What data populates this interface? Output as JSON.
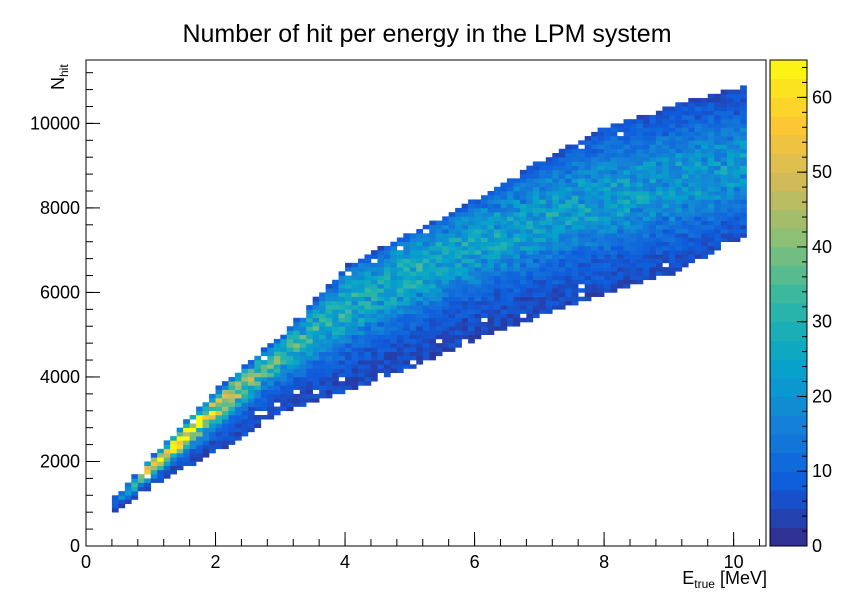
{
  "chart_data": {
    "type": "heatmap",
    "title": "Number of hit per energy in the LPM system",
    "xlabel": {
      "main": "E",
      "sub": "true",
      "suffix": " [MeV]"
    },
    "ylabel": {
      "main": "N",
      "sub": "hit"
    },
    "xlim": [
      0,
      10.5
    ],
    "ylim": [
      0,
      11500
    ],
    "x_ticks": [
      "0",
      "2",
      "4",
      "6",
      "8",
      "10"
    ],
    "y_ticks": [
      "0",
      "2000",
      "4000",
      "6000",
      "8000",
      "10000"
    ],
    "colorbar": {
      "range": [
        0,
        65
      ],
      "ticks": [
        "0",
        "10",
        "20",
        "30",
        "40",
        "50",
        "60"
      ]
    },
    "grid": false,
    "distribution": {
      "x_range": [
        0.4,
        10.1
      ],
      "ridge": [
        [
          0.4,
          950
        ],
        [
          1.0,
          1900
        ],
        [
          2.0,
          3300
        ],
        [
          3.0,
          4500
        ],
        [
          4.0,
          5600
        ],
        [
          5.0,
          6400
        ],
        [
          6.0,
          7100
        ],
        [
          7.0,
          7700
        ],
        [
          8.0,
          8200
        ],
        [
          9.0,
          8600
        ],
        [
          10.0,
          8900
        ]
      ],
      "lower_edge": [
        [
          0.4,
          850
        ],
        [
          1.0,
          1500
        ],
        [
          2.0,
          2300
        ],
        [
          3.0,
          3250
        ],
        [
          4.0,
          3700
        ],
        [
          5.0,
          4300
        ],
        [
          6.0,
          4950
        ],
        [
          7.0,
          5500
        ],
        [
          8.0,
          6050
        ],
        [
          9.0,
          6500
        ],
        [
          10.0,
          7300
        ]
      ],
      "upper_edge": [
        [
          0.4,
          1100
        ],
        [
          1.0,
          2100
        ],
        [
          2.0,
          3700
        ],
        [
          3.0,
          5000
        ],
        [
          4.0,
          6600
        ],
        [
          5.0,
          7400
        ],
        [
          6.0,
          8200
        ],
        [
          7.0,
          9100
        ],
        [
          8.0,
          9900
        ],
        [
          9.0,
          10400
        ],
        [
          10.0,
          10800
        ]
      ],
      "peak_counts": [
        [
          0.4,
          4
        ],
        [
          1.0,
          62
        ],
        [
          1.5,
          65
        ],
        [
          2.0,
          45
        ],
        [
          2.5,
          35
        ],
        [
          3.0,
          28
        ],
        [
          4.0,
          24
        ],
        [
          6.0,
          22
        ],
        [
          8.0,
          20
        ],
        [
          10.0,
          18
        ]
      ]
    }
  }
}
